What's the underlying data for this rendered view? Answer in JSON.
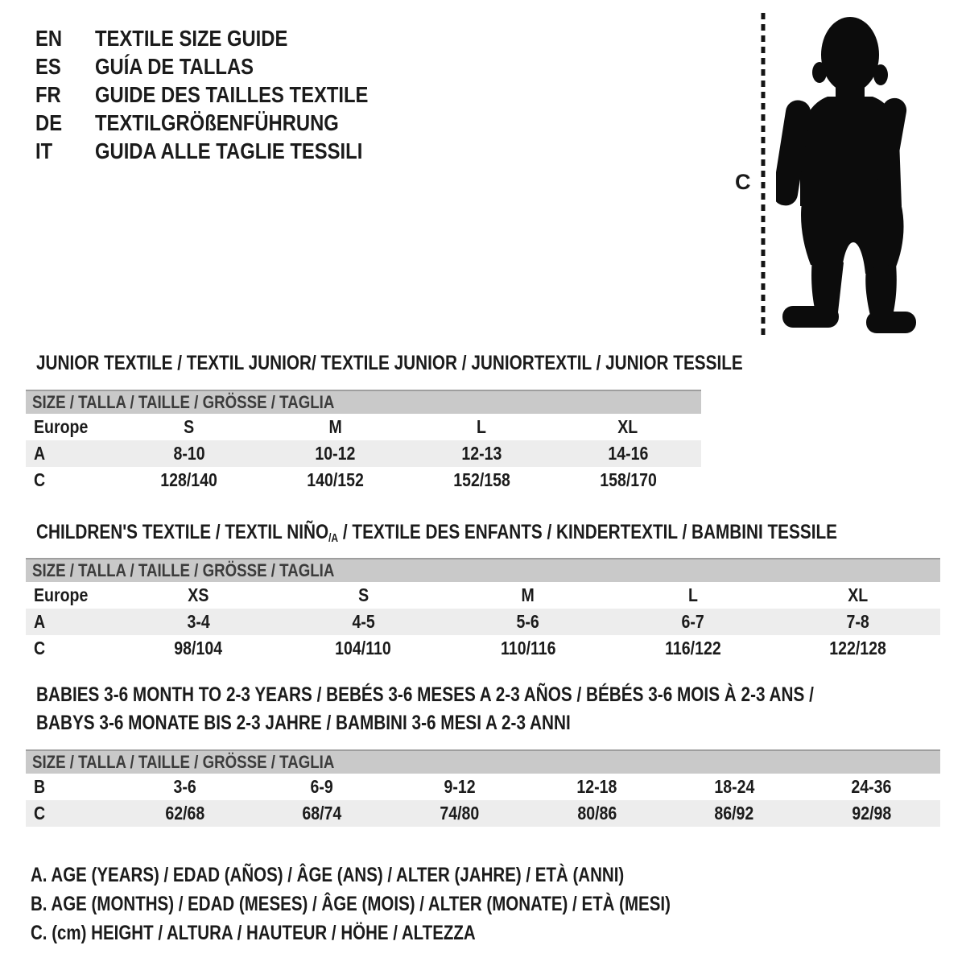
{
  "colors": {
    "text": "#1b1b1b",
    "bar_bg": "#c9c9c9",
    "bar_edge": "#9e9e9e",
    "stripe": "#ededed",
    "silhouette": "#0c0c0c"
  },
  "languages": [
    {
      "code": "EN",
      "title": "TEXTILE SIZE GUIDE"
    },
    {
      "code": "ES",
      "title": "GUÍA DE TALLAS"
    },
    {
      "code": "FR",
      "title": "GUIDE DES TAILLES TEXTILE"
    },
    {
      "code": "DE",
      "title": "TEXTILGRÖßENFÜHRUNG"
    },
    {
      "code": "IT",
      "title": "GUIDA ALLE TAGLIE TESSILI"
    }
  ],
  "figure": {
    "measure_label": "C"
  },
  "sections": [
    {
      "heading_lines": [
        [
          {
            "t": "JUNIOR TEXTILE / TEXTIL JUNIOR/ TEXTILE JUNIOR / JUNIORTEXTIL / JUNIOR TESSILE"
          }
        ]
      ],
      "size_header": "SIZE / TALLA / TAILLE / GRÖSSE / TAGLIA",
      "rows": [
        {
          "label": "Europe",
          "shaded": false,
          "values": [
            "S",
            "M",
            "L",
            "XL"
          ]
        },
        {
          "label": "A",
          "shaded": true,
          "values": [
            "8-10",
            "10-12",
            "12-13",
            "14-16"
          ]
        },
        {
          "label": "C",
          "shaded": false,
          "values": [
            "128/140",
            "140/152",
            "152/158",
            "158/170"
          ]
        }
      ]
    },
    {
      "heading_lines": [
        [
          {
            "t": "CHILDREN'S TEXTILE / TEXTIL NIÑO"
          },
          {
            "t": "/A",
            "sub": true
          },
          {
            "t": " / TEXTILE DES ENFANTS / KINDERTEXTIL / BAMBINI TESSILE"
          }
        ]
      ],
      "size_header": "SIZE / TALLA / TAILLE / GRÖSSE / TAGLIA",
      "rows": [
        {
          "label": "Europe",
          "shaded": false,
          "values": [
            "XS",
            "S",
            "M",
            "L",
            "XL"
          ]
        },
        {
          "label": "A",
          "shaded": true,
          "values": [
            "3-4",
            "4-5",
            "5-6",
            "6-7",
            "7-8"
          ]
        },
        {
          "label": "C",
          "shaded": false,
          "values": [
            "98/104",
            "104/110",
            "110/116",
            "116/122",
            "122/128"
          ]
        }
      ]
    },
    {
      "heading_lines": [
        [
          {
            "t": "BABIES 3-6 MONTH TO 2-3 YEARS / BEBÉS 3-6 MESES A 2-3 AÑOS / BÉBÉS 3-6 MOIS À 2-3 ANS /"
          }
        ],
        [
          {
            "t": "BABYS 3-6 MONATE BIS 2-3 JAHRE / BAMBINI 3-6 MESI A 2-3 ANNI"
          }
        ]
      ],
      "size_header": "SIZE / TALLA / TAILLE / GRÖSSE / TAGLIA",
      "rows": [
        {
          "label": "B",
          "shaded": false,
          "values": [
            "3-6",
            "6-9",
            "9-12",
            "12-18",
            "18-24",
            "24-36"
          ]
        },
        {
          "label": "C",
          "shaded": true,
          "values": [
            "62/68",
            "68/74",
            "74/80",
            "80/86",
            "86/92",
            "92/98"
          ]
        }
      ]
    }
  ],
  "legend": [
    "A. AGE (YEARS) / EDAD (AÑOS) / ÂGE (ANS) / ALTER (JAHRE) / ETÀ (ANNI)",
    "B. AGE (MONTHS) / EDAD (MESES) / ÂGE (MOIS) / ALTER (MONATE) / ETÀ (MESI)",
    "C. (cm) HEIGHT / ALTURA / HAUTEUR / HÖHE / ALTEZZA"
  ]
}
